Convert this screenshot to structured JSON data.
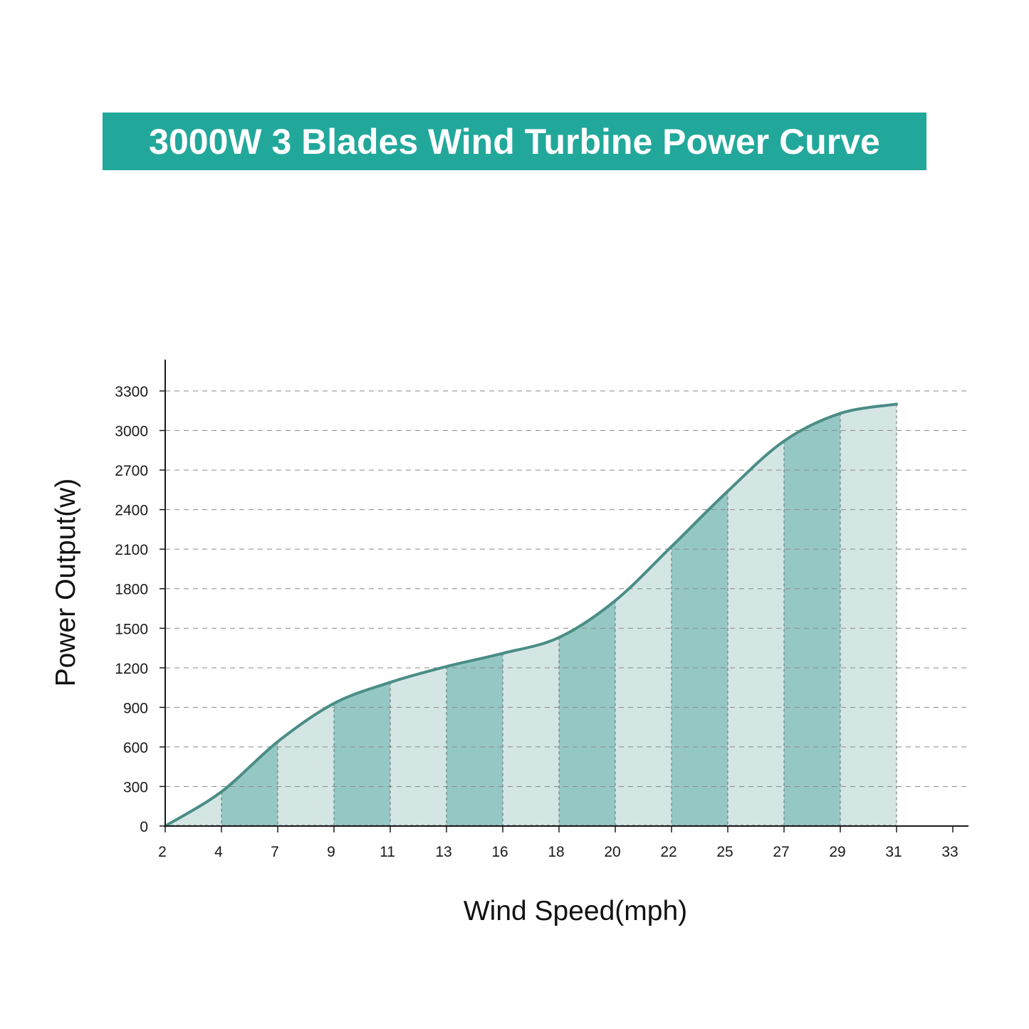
{
  "title": "3000W 3 Blades Wind Turbine Power Curve",
  "colors": {
    "banner": "#21a89b",
    "line": "#4a8d86",
    "band_dark": "#95c8c5",
    "band_light": "#d4e6e4",
    "grid": "#8a8a8a",
    "axis": "#1a1a1a"
  },
  "chart_data": {
    "type": "area",
    "title": "3000W 3 Blades Wind Turbine Power Curve",
    "xlabel": "Wind Speed(mph)",
    "ylabel": "Power Output(w)",
    "x_tick_labels": [
      "2",
      "4",
      "7",
      "9",
      "11",
      "13",
      "16",
      "18",
      "20",
      "22",
      "25",
      "27",
      "29",
      "31",
      "33"
    ],
    "y_tick_labels": [
      "0",
      "300",
      "600",
      "900",
      "1200",
      "1500",
      "1800",
      "2100",
      "2400",
      "2700",
      "3000",
      "3300"
    ],
    "ylim": [
      0,
      3300
    ],
    "grid": "horizontal dashed",
    "series": [
      {
        "x": [
          "2",
          "4",
          "7",
          "9",
          "11",
          "13",
          "16",
          "18",
          "20",
          "22",
          "25",
          "27",
          "29",
          "31"
        ],
        "values": [
          0,
          260,
          640,
          930,
          1090,
          1210,
          1310,
          1430,
          1710,
          2120,
          2540,
          2920,
          3130,
          3200
        ]
      }
    ]
  }
}
